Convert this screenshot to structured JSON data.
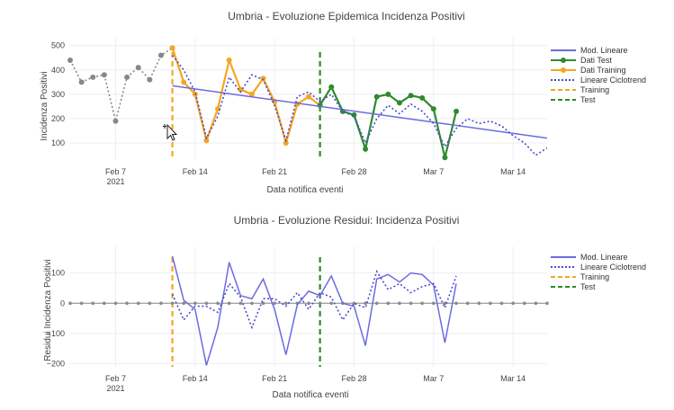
{
  "charts": [
    {
      "title": "Umbria - Evoluzione Epidemica Incidenza Positivi",
      "xlabel": "Data notifica eventi",
      "ylabel": "Incidenza Positivi",
      "year_label": "2021",
      "yticks": [
        "100",
        "200",
        "300",
        "400",
        "500"
      ],
      "xticks": [
        "Feb 7",
        "Feb 14",
        "Feb 21",
        "Feb 28",
        "Mar 7",
        "Mar 14"
      ],
      "legend": [
        "Mod. Lineare",
        "Dati Test",
        "Dati Training",
        "Lineare Ciclotrend",
        "Training",
        "Test"
      ]
    },
    {
      "title": "Umbria - Evoluzione Residui: Incidenza Positivi",
      "xlabel": "Data notifica eventi",
      "ylabel": "Residui Incidenza Positivi",
      "year_label": "2021",
      "yticks": [
        "100",
        "0",
        "−100",
        "−200"
      ],
      "xticks": [
        "Feb 7",
        "Feb 14",
        "Feb 21",
        "Feb 28",
        "Mar 7",
        "Mar 14"
      ],
      "legend": [
        "Mod. Lineare",
        "Lineare Ciclotrend",
        "Training",
        "Test"
      ]
    }
  ],
  "colors": {
    "linear": "#6b6be0",
    "ciclo": "#4a4ad0",
    "test": "#2e8b2e",
    "training": "#f5a623",
    "hist": "#888888"
  },
  "chart_data": [
    {
      "type": "line",
      "title": "Umbria - Evoluzione Epidemica Incidenza Positivi",
      "xlabel": "Data notifica eventi",
      "ylabel": "Incidenza Positivi",
      "x_range": [
        "2021-02-03",
        "2021-03-17"
      ],
      "ylim": [
        30,
        510
      ],
      "vlines": [
        {
          "name": "Training",
          "x": "2021-02-12",
          "color": "#f5a623",
          "style": "dashed"
        },
        {
          "name": "Test",
          "x": "2021-02-25",
          "color": "#2e8b2e",
          "style": "dashed"
        }
      ],
      "series": [
        {
          "kind": "history",
          "color": "#888888",
          "style": "dotted-markers",
          "x": [
            "2021-02-03",
            "2021-02-04",
            "2021-02-05",
            "2021-02-06",
            "2021-02-07",
            "2021-02-08",
            "2021-02-09",
            "2021-02-10",
            "2021-02-11",
            "2021-02-12"
          ],
          "y": [
            440,
            350,
            370,
            380,
            190,
            370,
            410,
            360,
            460,
            490
          ]
        },
        {
          "name": "Dati Training",
          "color": "#f5a623",
          "style": "solid-markers",
          "x": [
            "2021-02-12",
            "2021-02-13",
            "2021-02-14",
            "2021-02-15",
            "2021-02-16",
            "2021-02-17",
            "2021-02-18",
            "2021-02-19",
            "2021-02-20",
            "2021-02-21",
            "2021-02-22",
            "2021-02-23",
            "2021-02-24",
            "2021-02-25"
          ],
          "y": [
            490,
            350,
            300,
            110,
            240,
            440,
            320,
            300,
            365,
            270,
            100,
            260,
            290,
            255
          ]
        },
        {
          "name": "Dati Test",
          "color": "#2e8b2e",
          "style": "solid-markers",
          "x": [
            "2021-02-25",
            "2021-02-26",
            "2021-02-27",
            "2021-02-28",
            "2021-03-01",
            "2021-03-02",
            "2021-03-03",
            "2021-03-04",
            "2021-03-05",
            "2021-03-06",
            "2021-03-07",
            "2021-03-08",
            "2021-03-09"
          ],
          "y": [
            255,
            330,
            230,
            215,
            75,
            290,
            300,
            265,
            295,
            285,
            240,
            40,
            230
          ]
        },
        {
          "name": "Mod. Lineare",
          "color": "#6b6be0",
          "style": "solid",
          "x": [
            "2021-02-12",
            "2021-03-17"
          ],
          "y": [
            335,
            120
          ]
        },
        {
          "name": "Lineare Ciclotrend",
          "color": "#4a4ad0",
          "style": "dotted",
          "x": [
            "2021-02-12",
            "2021-02-13",
            "2021-02-14",
            "2021-02-15",
            "2021-02-16",
            "2021-02-17",
            "2021-02-18",
            "2021-02-19",
            "2021-02-20",
            "2021-02-21",
            "2021-02-22",
            "2021-02-23",
            "2021-02-24",
            "2021-02-25",
            "2021-02-26",
            "2021-02-27",
            "2021-02-28",
            "2021-03-01",
            "2021-03-02",
            "2021-03-03",
            "2021-03-04",
            "2021-03-05",
            "2021-03-06",
            "2021-03-07",
            "2021-03-08",
            "2021-03-09",
            "2021-03-10",
            "2021-03-11",
            "2021-03-12",
            "2021-03-13",
            "2021-03-14",
            "2021-03-15",
            "2021-03-16",
            "2021-03-17"
          ],
          "y": [
            460,
            400,
            310,
            120,
            210,
            370,
            310,
            380,
            360,
            255,
            110,
            290,
            310,
            270,
            300,
            230,
            210,
            100,
            200,
            255,
            220,
            260,
            230,
            180,
            85,
            160,
            200,
            180,
            190,
            170,
            130,
            100,
            50,
            80
          ]
        }
      ]
    },
    {
      "type": "line",
      "title": "Umbria - Evoluzione Residui: Incidenza Positivi",
      "xlabel": "Data notifica eventi",
      "ylabel": "Residui Incidenza Positivi",
      "x_range": [
        "2021-02-03",
        "2021-03-17"
      ],
      "ylim": [
        -210,
        170
      ],
      "vlines": [
        {
          "name": "Training",
          "x": "2021-02-12",
          "color": "#f5a623",
          "style": "dashed"
        },
        {
          "name": "Test",
          "x": "2021-02-25",
          "color": "#2e8b2e",
          "style": "dashed"
        }
      ],
      "series": [
        {
          "kind": "zero",
          "color": "#888888",
          "style": "markers",
          "x": [
            "2021-02-03",
            "2021-02-04",
            "2021-02-05",
            "2021-02-06",
            "2021-02-07",
            "2021-02-08",
            "2021-02-09",
            "2021-02-10",
            "2021-02-11",
            "2021-02-12",
            "2021-02-13",
            "2021-02-14",
            "2021-02-15",
            "2021-02-16",
            "2021-02-17",
            "2021-02-18",
            "2021-02-19",
            "2021-02-20",
            "2021-02-21",
            "2021-02-22",
            "2021-02-23",
            "2021-02-24",
            "2021-02-25",
            "2021-02-26",
            "2021-02-27",
            "2021-02-28",
            "2021-03-01",
            "2021-03-02",
            "2021-03-03",
            "2021-03-04",
            "2021-03-05",
            "2021-03-06",
            "2021-03-07",
            "2021-03-08",
            "2021-03-09",
            "2021-03-10",
            "2021-03-11",
            "2021-03-12",
            "2021-03-13",
            "2021-03-14",
            "2021-03-15",
            "2021-03-16",
            "2021-03-17"
          ],
          "y": [
            0,
            0,
            0,
            0,
            0,
            0,
            0,
            0,
            0,
            0,
            0,
            0,
            0,
            0,
            0,
            0,
            0,
            0,
            0,
            0,
            0,
            0,
            0,
            0,
            0,
            0,
            0,
            0,
            0,
            0,
            0,
            0,
            0,
            0,
            0,
            0,
            0,
            0,
            0,
            0,
            0,
            0,
            0
          ]
        },
        {
          "name": "Mod. Lineare",
          "color": "#6b6be0",
          "style": "solid",
          "x": [
            "2021-02-12",
            "2021-02-13",
            "2021-02-14",
            "2021-02-15",
            "2021-02-16",
            "2021-02-17",
            "2021-02-18",
            "2021-02-19",
            "2021-02-20",
            "2021-02-21",
            "2021-02-22",
            "2021-02-23",
            "2021-02-24",
            "2021-02-25",
            "2021-02-26",
            "2021-02-27",
            "2021-02-28",
            "2021-03-01",
            "2021-03-02",
            "2021-03-03",
            "2021-03-04",
            "2021-03-05",
            "2021-03-06",
            "2021-03-07",
            "2021-03-08",
            "2021-03-09"
          ],
          "y": [
            155,
            10,
            -20,
            -205,
            -80,
            135,
            25,
            15,
            80,
            -20,
            -170,
            -5,
            40,
            25,
            90,
            0,
            -10,
            -140,
            80,
            95,
            70,
            100,
            95,
            60,
            -130,
            65
          ]
        },
        {
          "name": "Lineare Ciclotrend",
          "color": "#4a4ad0",
          "style": "dotted",
          "x": [
            "2021-02-12",
            "2021-02-13",
            "2021-02-14",
            "2021-02-15",
            "2021-02-16",
            "2021-02-17",
            "2021-02-18",
            "2021-02-19",
            "2021-02-20",
            "2021-02-21",
            "2021-02-22",
            "2021-02-23",
            "2021-02-24",
            "2021-02-25",
            "2021-02-26",
            "2021-02-27",
            "2021-02-28",
            "2021-03-01",
            "2021-03-02",
            "2021-03-03",
            "2021-03-04",
            "2021-03-05",
            "2021-03-06",
            "2021-03-07",
            "2021-03-08",
            "2021-03-09"
          ],
          "y": [
            30,
            -55,
            -10,
            -10,
            -30,
            65,
            20,
            -80,
            15,
            15,
            -10,
            35,
            -20,
            35,
            20,
            -55,
            0,
            -15,
            105,
            45,
            65,
            35,
            55,
            65,
            -15,
            90
          ]
        }
      ]
    }
  ]
}
